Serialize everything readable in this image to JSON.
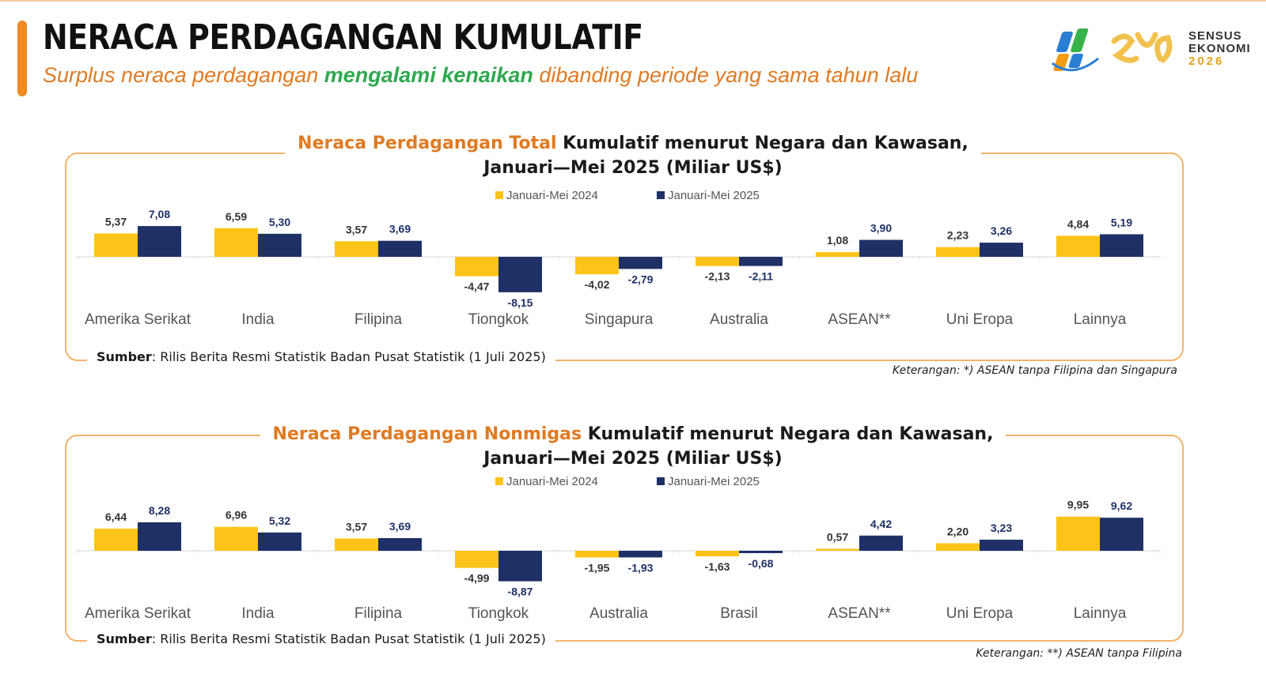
{
  "header": {
    "title": "NERACA PERDAGANGAN KUMULATIF",
    "subtitle_prefix": "Surplus neraca perdagangan ",
    "subtitle_highlight": "mengalami kenaikan",
    "subtitle_suffix": " dibanding periode yang sama tahun lalu"
  },
  "logo": {
    "line1": "SENSUS",
    "line2": "EKONOMI",
    "line3": "2026"
  },
  "colors": {
    "series_2024": "#fcc419",
    "series_2025": "#1f3066",
    "accent": "#f08a24",
    "highlight": "#2fa84f",
    "panel_border": "#f2b36d"
  },
  "panels": [
    {
      "title_lead": "Neraca Perdagangan Total",
      "title_rest": " Kumulatif menurut Negara dan Kawasan,",
      "title_line2": "Januari—Mei 2025 (Miliar US$)",
      "source_bold": "Sumber",
      "source_rest": ": Rilis Berita Resmi Statistik Badan Pusat Statistik (1 Juli 2025)",
      "note": "Keterangan: *) ASEAN tanpa Filipina dan Singapura"
    },
    {
      "title_lead": "Neraca Perdagangan Nonmigas",
      "title_rest": " Kumulatif menurut Negara dan Kawasan,",
      "title_line2": "Januari—Mei 2025 (Miliar US$)",
      "source_bold": "Sumber",
      "source_rest": ": Rilis Berita Resmi Statistik Badan Pusat Statistik (1 Juli 2025)",
      "note": "Keterangan: **) ASEAN tanpa Filipina"
    }
  ],
  "chart_data": [
    {
      "type": "bar",
      "categories": [
        "Amerika Serikat",
        "India",
        "Filipina",
        "Tiongkok",
        "Singapura",
        "Australia",
        "ASEAN**",
        "Uni Eropa",
        "Lainnya"
      ],
      "series": [
        {
          "name": "Januari-Mei 2024",
          "values": [
            5.37,
            6.59,
            3.57,
            -4.47,
            -4.02,
            -2.13,
            1.08,
            2.23,
            4.84
          ],
          "labels": [
            "5,37",
            "6,59",
            "3,57",
            "-4,47",
            "-4,02",
            "-2,13",
            "1,08",
            "2,23",
            "4,84"
          ]
        },
        {
          "name": "Januari-Mei 2025",
          "values": [
            7.08,
            5.3,
            3.69,
            -8.15,
            -2.79,
            -2.11,
            3.9,
            3.26,
            5.19
          ],
          "labels": [
            "7,08",
            "5,30",
            "3,69",
            "-8,15",
            "-2,79",
            "-2,11",
            "3,90",
            "3,26",
            "5,19"
          ]
        }
      ],
      "legend_position": "top-center",
      "grid": false
    },
    {
      "type": "bar",
      "categories": [
        "Amerika Serikat",
        "India",
        "Filipina",
        "Tiongkok",
        "Australia",
        "Brasil",
        "ASEAN**",
        "Uni Eropa",
        "Lainnya"
      ],
      "series": [
        {
          "name": "Januari-Mei 2024",
          "values": [
            6.44,
            6.96,
            3.57,
            -4.99,
            -1.95,
            -1.63,
            0.57,
            2.2,
            9.95
          ],
          "labels": [
            "6,44",
            "6,96",
            "3,57",
            "-4,99",
            "-1,95",
            "-1,63",
            "0,57",
            "2,20",
            "9,95"
          ]
        },
        {
          "name": "Januari-Mei 2025",
          "values": [
            8.28,
            5.32,
            3.69,
            -8.87,
            -1.93,
            -0.68,
            4.42,
            3.23,
            9.62
          ],
          "labels": [
            "8,28",
            "5,32",
            "3,69",
            "-8,87",
            "-1,93",
            "-0,68",
            "4,42",
            "3,23",
            "9,62"
          ]
        }
      ],
      "legend_position": "top-center",
      "grid": false
    }
  ]
}
